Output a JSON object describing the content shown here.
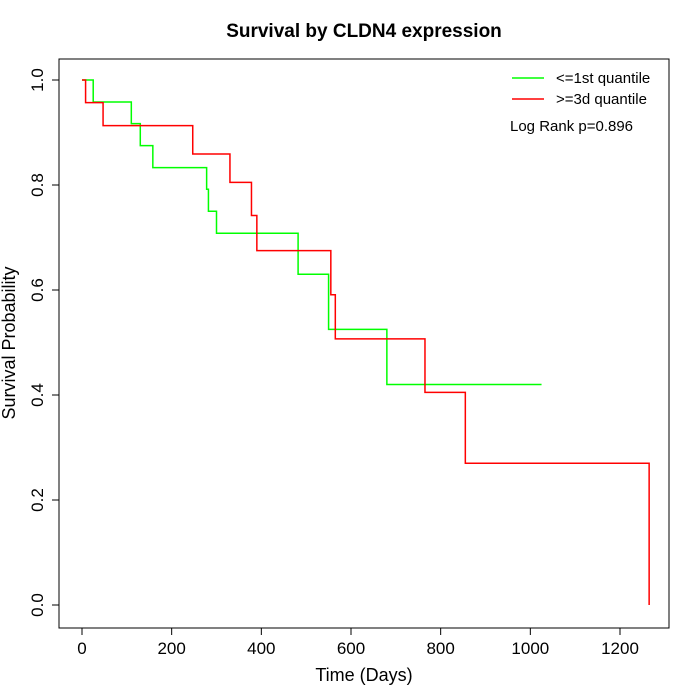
{
  "chart_data": {
    "type": "line",
    "title": "Survival by CLDN4 expression",
    "xlabel": "Time (Days)",
    "ylabel": "Survival Probability",
    "xlim": [
      0,
      1265
    ],
    "ylim": [
      0,
      1
    ],
    "xticks": [
      0,
      200,
      400,
      600,
      800,
      1000,
      1200
    ],
    "yticks": [
      0.0,
      0.2,
      0.4,
      0.6,
      0.8,
      1.0
    ],
    "xtick_labels": [
      "0",
      "200",
      "400",
      "600",
      "800",
      "1000",
      "1200"
    ],
    "ytick_labels": [
      "0.0",
      "0.2",
      "0.4",
      "0.6",
      "0.8",
      "1.0"
    ],
    "legend_position": "top-right",
    "annotation": "Log Rank p=0.896",
    "series": [
      {
        "name": "<=1st quantile",
        "color": "#00ff00",
        "step": true,
        "x": [
          0,
          25,
          110,
          130,
          158,
          278,
          282,
          300,
          482,
          550,
          680,
          1025
        ],
        "y": [
          1.0,
          0.958,
          0.917,
          0.875,
          0.833,
          0.792,
          0.75,
          0.708,
          0.63,
          0.525,
          0.42,
          0.42
        ]
      },
      {
        "name": ">=3d quantile",
        "color": "#ff0000",
        "step": true,
        "x": [
          0,
          8,
          47,
          247,
          330,
          378,
          390,
          555,
          565,
          765,
          855,
          1265
        ],
        "y": [
          1.0,
          0.957,
          0.913,
          0.859,
          0.805,
          0.742,
          0.675,
          0.591,
          0.507,
          0.405,
          0.27,
          0.0
        ]
      }
    ]
  }
}
